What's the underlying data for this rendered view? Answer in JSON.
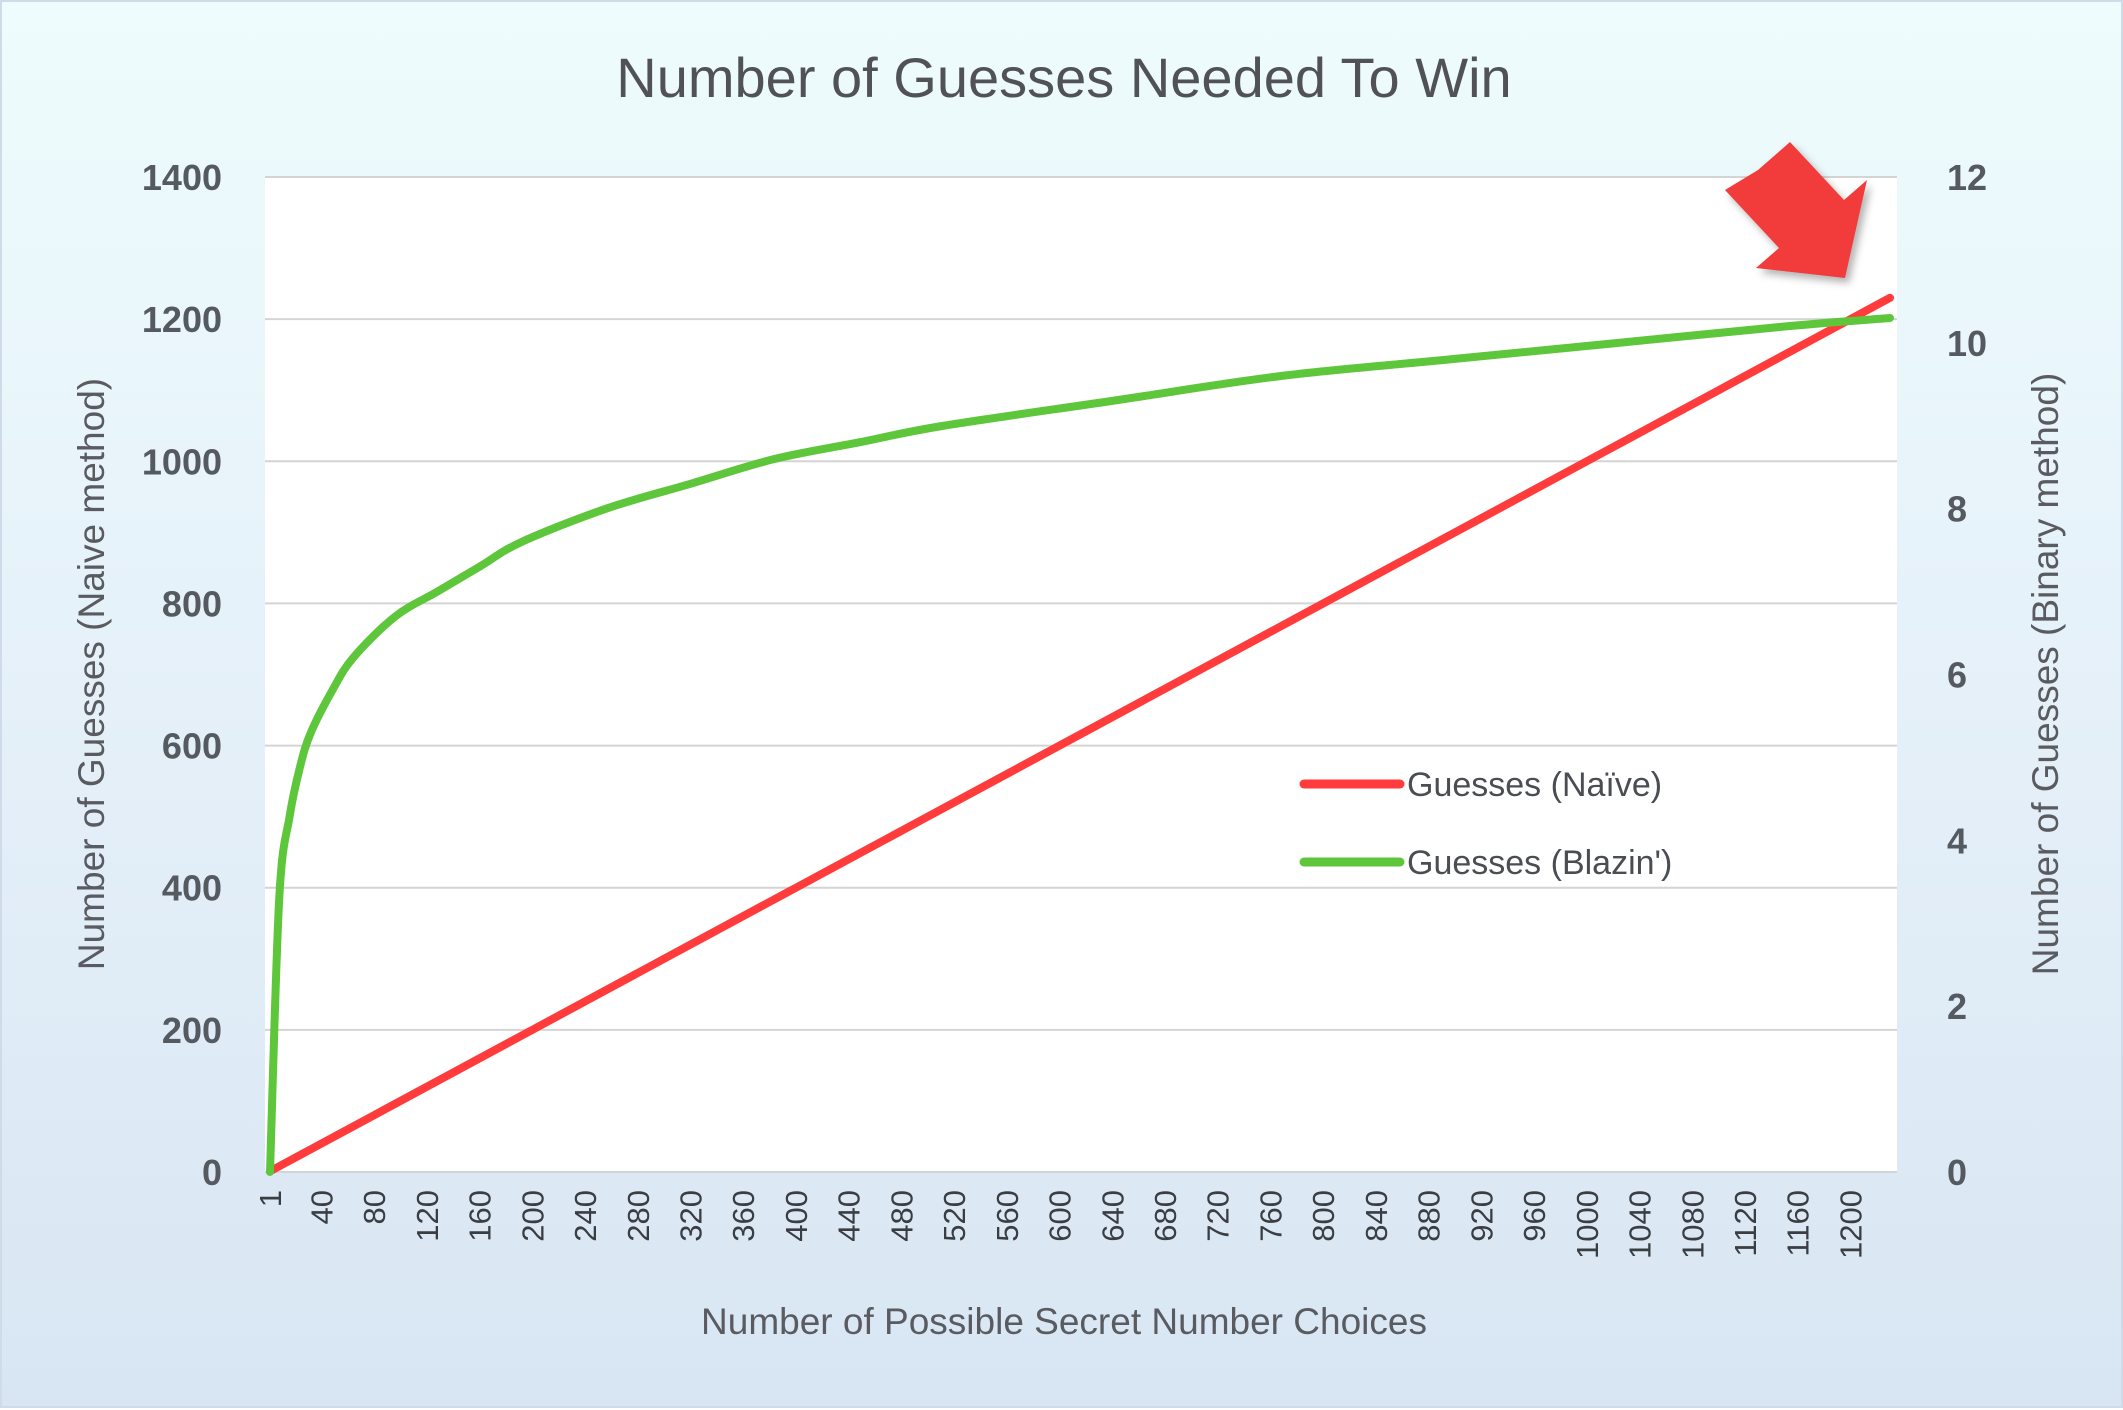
{
  "chart_data": {
    "type": "line",
    "title": "Number of Guesses Needed To Win",
    "xlabel": "Number of Possible Secret Number Choices",
    "ylabel_left": "Number of Guesses (Naive method)",
    "ylabel_right": "Number of Guesses (Binary method)",
    "x_range": [
      1,
      1230
    ],
    "x_ticks": [
      "1",
      "40",
      "80",
      "120",
      "160",
      "200",
      "240",
      "280",
      "320",
      "360",
      "400",
      "440",
      "480",
      "520",
      "560",
      "600",
      "640",
      "680",
      "720",
      "760",
      "800",
      "840",
      "880",
      "920",
      "960",
      "1000",
      "1040",
      "1080",
      "1120",
      "1160",
      "1200"
    ],
    "y_left_range": [
      0,
      1400
    ],
    "y_left_ticks": [
      "0",
      "200",
      "400",
      "600",
      "800",
      "1000",
      "1200",
      "1400"
    ],
    "y_right_range": [
      0,
      12
    ],
    "y_right_ticks": [
      "0",
      "2",
      "4",
      "6",
      "8",
      "10",
      "12"
    ],
    "grid": true,
    "legend_position": "center-right",
    "series": [
      {
        "name": "Guesses (Naïve)",
        "axis": "left",
        "color": "#ff3b3b",
        "x": [
          1,
          100,
          200,
          300,
          400,
          500,
          600,
          700,
          800,
          900,
          1000,
          1100,
          1200,
          1230
        ],
        "values": [
          1,
          100,
          200,
          300,
          400,
          500,
          600,
          700,
          800,
          900,
          1000,
          1100,
          1200,
          1230
        ]
      },
      {
        "name": "Guesses (Blazin')",
        "axis": "right",
        "color": "#5ec63a",
        "x": [
          1,
          8,
          16,
          24,
          32,
          48,
          64,
          96,
          128,
          160,
          192,
          256,
          320,
          384,
          448,
          512,
          640,
          768,
          896,
          1024,
          1152,
          1230
        ],
        "values": [
          0,
          3.3,
          4.3,
          4.9,
          5.3,
          5.8,
          6.2,
          6.7,
          7.0,
          7.3,
          7.6,
          8.0,
          8.3,
          8.6,
          8.8,
          9.0,
          9.3,
          9.6,
          9.8,
          10.0,
          10.2,
          10.3
        ]
      }
    ],
    "annotations": [
      {
        "type": "arrow",
        "color": "#f23a3a",
        "points_to": "intersection"
      }
    ]
  }
}
